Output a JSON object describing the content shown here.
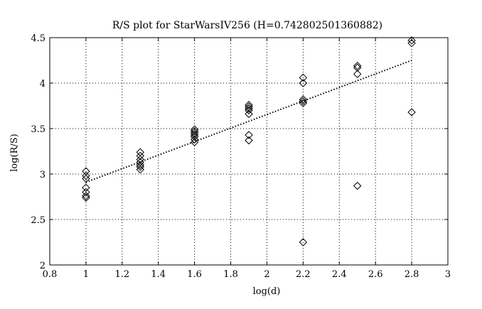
{
  "chart_data": {
    "type": "scatter",
    "title": "R/S plot for StarWarsIV256 (H=0.742802501360882)",
    "xlabel": "log(d)",
    "ylabel": "log(R/S)",
    "xlim": [
      0.8,
      3
    ],
    "ylim": [
      2,
      4.5
    ],
    "xticks": [
      0.8,
      1,
      1.2,
      1.4,
      1.6,
      1.8,
      2,
      2.2,
      2.4,
      2.6,
      2.8,
      3
    ],
    "xtick_labels": [
      "0.8",
      "1",
      "1.2",
      "1.4",
      "1.6",
      "1.8",
      "2",
      "2.2",
      "2.4",
      "2.6",
      "2.8",
      "3"
    ],
    "yticks": [
      2,
      2.5,
      3,
      3.5,
      4,
      4.5
    ],
    "ytick_labels": [
      "2",
      "2.5",
      "3",
      "3.5",
      "4",
      "4.5"
    ],
    "grid": true,
    "marker": "diamond",
    "series": [
      {
        "points": [
          [
            1,
            3.03
          ],
          [
            1,
            2.98
          ],
          [
            1,
            2.95
          ],
          [
            1,
            2.85
          ],
          [
            1,
            2.8
          ],
          [
            1,
            2.76
          ],
          [
            1,
            2.74
          ],
          [
            1.3,
            3.24
          ],
          [
            1.3,
            3.2
          ],
          [
            1.3,
            3.16
          ],
          [
            1.3,
            3.13
          ],
          [
            1.3,
            3.1
          ],
          [
            1.3,
            3.08
          ],
          [
            1.3,
            3.05
          ],
          [
            1.6,
            3.49
          ],
          [
            1.6,
            3.47
          ],
          [
            1.6,
            3.45
          ],
          [
            1.6,
            3.43
          ],
          [
            1.6,
            3.41
          ],
          [
            1.6,
            3.38
          ],
          [
            1.6,
            3.35
          ],
          [
            1.9,
            3.76
          ],
          [
            1.9,
            3.74
          ],
          [
            1.9,
            3.72
          ],
          [
            1.9,
            3.7
          ],
          [
            1.9,
            3.66
          ],
          [
            1.9,
            3.43
          ],
          [
            1.9,
            3.37
          ],
          [
            2.2,
            4.06
          ],
          [
            2.2,
            4.0
          ],
          [
            2.2,
            3.82
          ],
          [
            2.2,
            3.8
          ],
          [
            2.2,
            3.78
          ],
          [
            2.2,
            2.25
          ],
          [
            2.5,
            4.19
          ],
          [
            2.5,
            4.17
          ],
          [
            2.5,
            4.1
          ],
          [
            2.5,
            2.87
          ],
          [
            2.8,
            4.47
          ],
          [
            2.8,
            4.44
          ],
          [
            2.8,
            3.68
          ]
        ]
      }
    ],
    "fit_line": {
      "style": "dotted",
      "x": [
        1,
        2.8
      ],
      "y": [
        2.91,
        4.25
      ]
    }
  }
}
